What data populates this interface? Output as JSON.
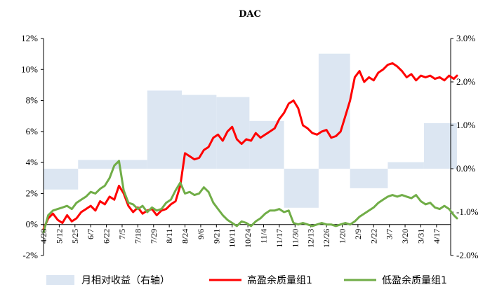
{
  "chart_data": {
    "type": "bar+line",
    "title": "DAC",
    "x_labels": [
      "4/28",
      "5/12",
      "5/25",
      "6/7",
      "6/22",
      "7/5",
      "7/18",
      "7/29",
      "8/11",
      "8/24",
      "9/6",
      "9/21",
      "10/11",
      "10/24",
      "11/4",
      "11/17",
      "11/30",
      "12/13",
      "12/26",
      "1/20",
      "2/9",
      "2/22",
      "3/7",
      "3/20",
      "3/31",
      "4/17"
    ],
    "left_axis": {
      "ylim": [
        -2,
        12
      ],
      "ticks": [
        "-2%",
        "0%",
        "2%",
        "4%",
        "6%",
        "8%",
        "10%",
        "12%"
      ],
      "tick_values": [
        -2,
        0,
        2,
        4,
        6,
        8,
        10,
        12
      ]
    },
    "right_axis": {
      "ylim": [
        -2.0,
        3.0
      ],
      "ticks": [
        "-2.0%",
        "-1.0%",
        "0.0%",
        "1.0%",
        "2.0%",
        "3.0%"
      ],
      "tick_values": [
        -2,
        -1,
        0,
        1,
        2,
        3
      ]
    },
    "bars": {
      "name": "月相对收益（右轴）",
      "axis": "right",
      "color": "#dce6f2",
      "periods": [
        {
          "start": 0,
          "end": 2.2,
          "value": -0.48
        },
        {
          "start": 2.2,
          "end": 4.9,
          "value": 0.2
        },
        {
          "start": 4.9,
          "end": 6.6,
          "value": 0.2
        },
        {
          "start": 6.6,
          "end": 8.8,
          "value": 1.8
        },
        {
          "start": 8.8,
          "end": 11.0,
          "value": 1.7
        },
        {
          "start": 11.0,
          "end": 13.1,
          "value": 1.65
        },
        {
          "start": 13.1,
          "end": 15.3,
          "value": 1.1
        },
        {
          "start": 15.3,
          "end": 17.5,
          "value": -0.9
        },
        {
          "start": 17.5,
          "end": 19.5,
          "value": 2.65
        },
        {
          "start": 19.5,
          "end": 21.9,
          "value": -0.45
        },
        {
          "start": 21.9,
          "end": 24.2,
          "value": 0.15
        },
        {
          "start": 24.2,
          "end": 26.3,
          "value": 1.05
        }
      ]
    },
    "series": [
      {
        "name": "高盈余质量组1",
        "axis": "left",
        "color": "#ff0000",
        "x": [
          0,
          0.3,
          0.6,
          0.9,
          1.2,
          1.5,
          1.8,
          2.1,
          2.4,
          2.7,
          3.0,
          3.3,
          3.6,
          3.9,
          4.2,
          4.5,
          4.8,
          5.1,
          5.4,
          5.7,
          6.0,
          6.3,
          6.6,
          6.9,
          7.2,
          7.5,
          7.8,
          8.1,
          8.4,
          8.7,
          9.0,
          9.3,
          9.6,
          9.9,
          10.2,
          10.5,
          10.8,
          11.1,
          11.4,
          11.7,
          12.0,
          12.3,
          12.6,
          12.9,
          13.2,
          13.5,
          13.8,
          14.1,
          14.4,
          14.7,
          15.0,
          15.3,
          15.6,
          15.9,
          16.2,
          16.5,
          16.8,
          17.1,
          17.4,
          17.7,
          18.0,
          18.3,
          18.6,
          18.9,
          19.2,
          19.5,
          19.8,
          20.1,
          20.4,
          20.7,
          21.0,
          21.3,
          21.6,
          21.9,
          22.2,
          22.5,
          22.8,
          23.1,
          23.4,
          23.7,
          24.0,
          24.3,
          24.6,
          24.9,
          25.2,
          25.5,
          25.8,
          26.1,
          26.3
        ],
        "values": [
          -0.3,
          0.4,
          0.7,
          0.3,
          0.1,
          0.6,
          0.2,
          0.4,
          0.8,
          1.0,
          1.2,
          0.9,
          1.5,
          1.3,
          1.8,
          1.6,
          2.5,
          2.0,
          1.2,
          0.8,
          1.1,
          0.7,
          0.9,
          1.0,
          0.6,
          0.9,
          1.0,
          1.3,
          1.5,
          2.5,
          4.6,
          4.4,
          4.2,
          4.3,
          4.8,
          5.0,
          5.6,
          5.8,
          5.4,
          6.0,
          6.3,
          5.5,
          5.2,
          5.5,
          5.4,
          5.9,
          5.6,
          5.8,
          6.0,
          6.2,
          6.8,
          7.2,
          7.8,
          8.0,
          7.5,
          6.4,
          6.2,
          5.9,
          5.8,
          6.0,
          6.1,
          5.6,
          5.7,
          6.0,
          7.0,
          8.0,
          9.5,
          9.9,
          9.2,
          9.5,
          9.3,
          9.8,
          10.0,
          10.3,
          10.4,
          10.2,
          9.9,
          9.5,
          9.7,
          9.3,
          9.6,
          9.5,
          9.6,
          9.4,
          9.5,
          9.3,
          9.6,
          9.4,
          9.6
        ]
      },
      {
        "name": "低盈余质量组1",
        "axis": "left",
        "color": "#70ad47",
        "x": [
          0,
          0.3,
          0.6,
          0.9,
          1.2,
          1.5,
          1.8,
          2.1,
          2.4,
          2.7,
          3.0,
          3.3,
          3.6,
          3.9,
          4.2,
          4.5,
          4.8,
          5.1,
          5.4,
          5.7,
          6.0,
          6.3,
          6.6,
          6.9,
          7.2,
          7.5,
          7.8,
          8.1,
          8.4,
          8.7,
          9.0,
          9.3,
          9.6,
          9.9,
          10.2,
          10.5,
          10.8,
          11.1,
          11.4,
          11.7,
          12.0,
          12.3,
          12.6,
          12.9,
          13.2,
          13.5,
          13.8,
          14.1,
          14.4,
          14.7,
          15.0,
          15.3,
          15.6,
          15.9,
          16.2,
          16.5,
          16.8,
          17.1,
          17.4,
          17.7,
          18.0,
          18.3,
          18.6,
          18.9,
          19.2,
          19.5,
          19.8,
          20.1,
          20.4,
          20.7,
          21.0,
          21.3,
          21.6,
          21.9,
          22.2,
          22.5,
          22.8,
          23.1,
          23.4,
          23.7,
          24.0,
          24.3,
          24.6,
          24.9,
          25.2,
          25.5,
          25.8,
          26.1,
          26.3
        ],
        "values": [
          -0.5,
          0.6,
          0.9,
          1.0,
          1.1,
          1.2,
          1.0,
          1.4,
          1.6,
          1.8,
          2.1,
          2.0,
          2.3,
          2.5,
          3.0,
          3.8,
          4.1,
          2.2,
          1.4,
          1.3,
          1.0,
          1.2,
          0.8,
          1.1,
          0.9,
          1.0,
          1.4,
          1.6,
          2.2,
          2.7,
          2.0,
          2.1,
          1.9,
          2.0,
          2.4,
          2.1,
          1.4,
          1.0,
          0.6,
          0.3,
          0.1,
          -0.1,
          0.2,
          0.1,
          -0.1,
          0.2,
          0.4,
          0.7,
          0.9,
          0.9,
          1.0,
          0.8,
          0.9,
          0.1,
          0.0,
          0.1,
          0.0,
          -0.1,
          0.0,
          0.1,
          0.0,
          0.0,
          -0.1,
          0.0,
          0.1,
          0.0,
          0.2,
          0.5,
          0.7,
          0.9,
          1.1,
          1.4,
          1.6,
          1.8,
          1.9,
          1.8,
          1.9,
          1.8,
          1.7,
          1.9,
          1.5,
          1.3,
          1.4,
          1.1,
          1.0,
          1.2,
          1.0,
          0.6,
          0.4
        ]
      }
    ],
    "legend": [
      "月相对收益（右轴）",
      "高盈余质量组1",
      "低盈余质量组1"
    ],
    "legend_position": "bottom",
    "grid": false
  }
}
